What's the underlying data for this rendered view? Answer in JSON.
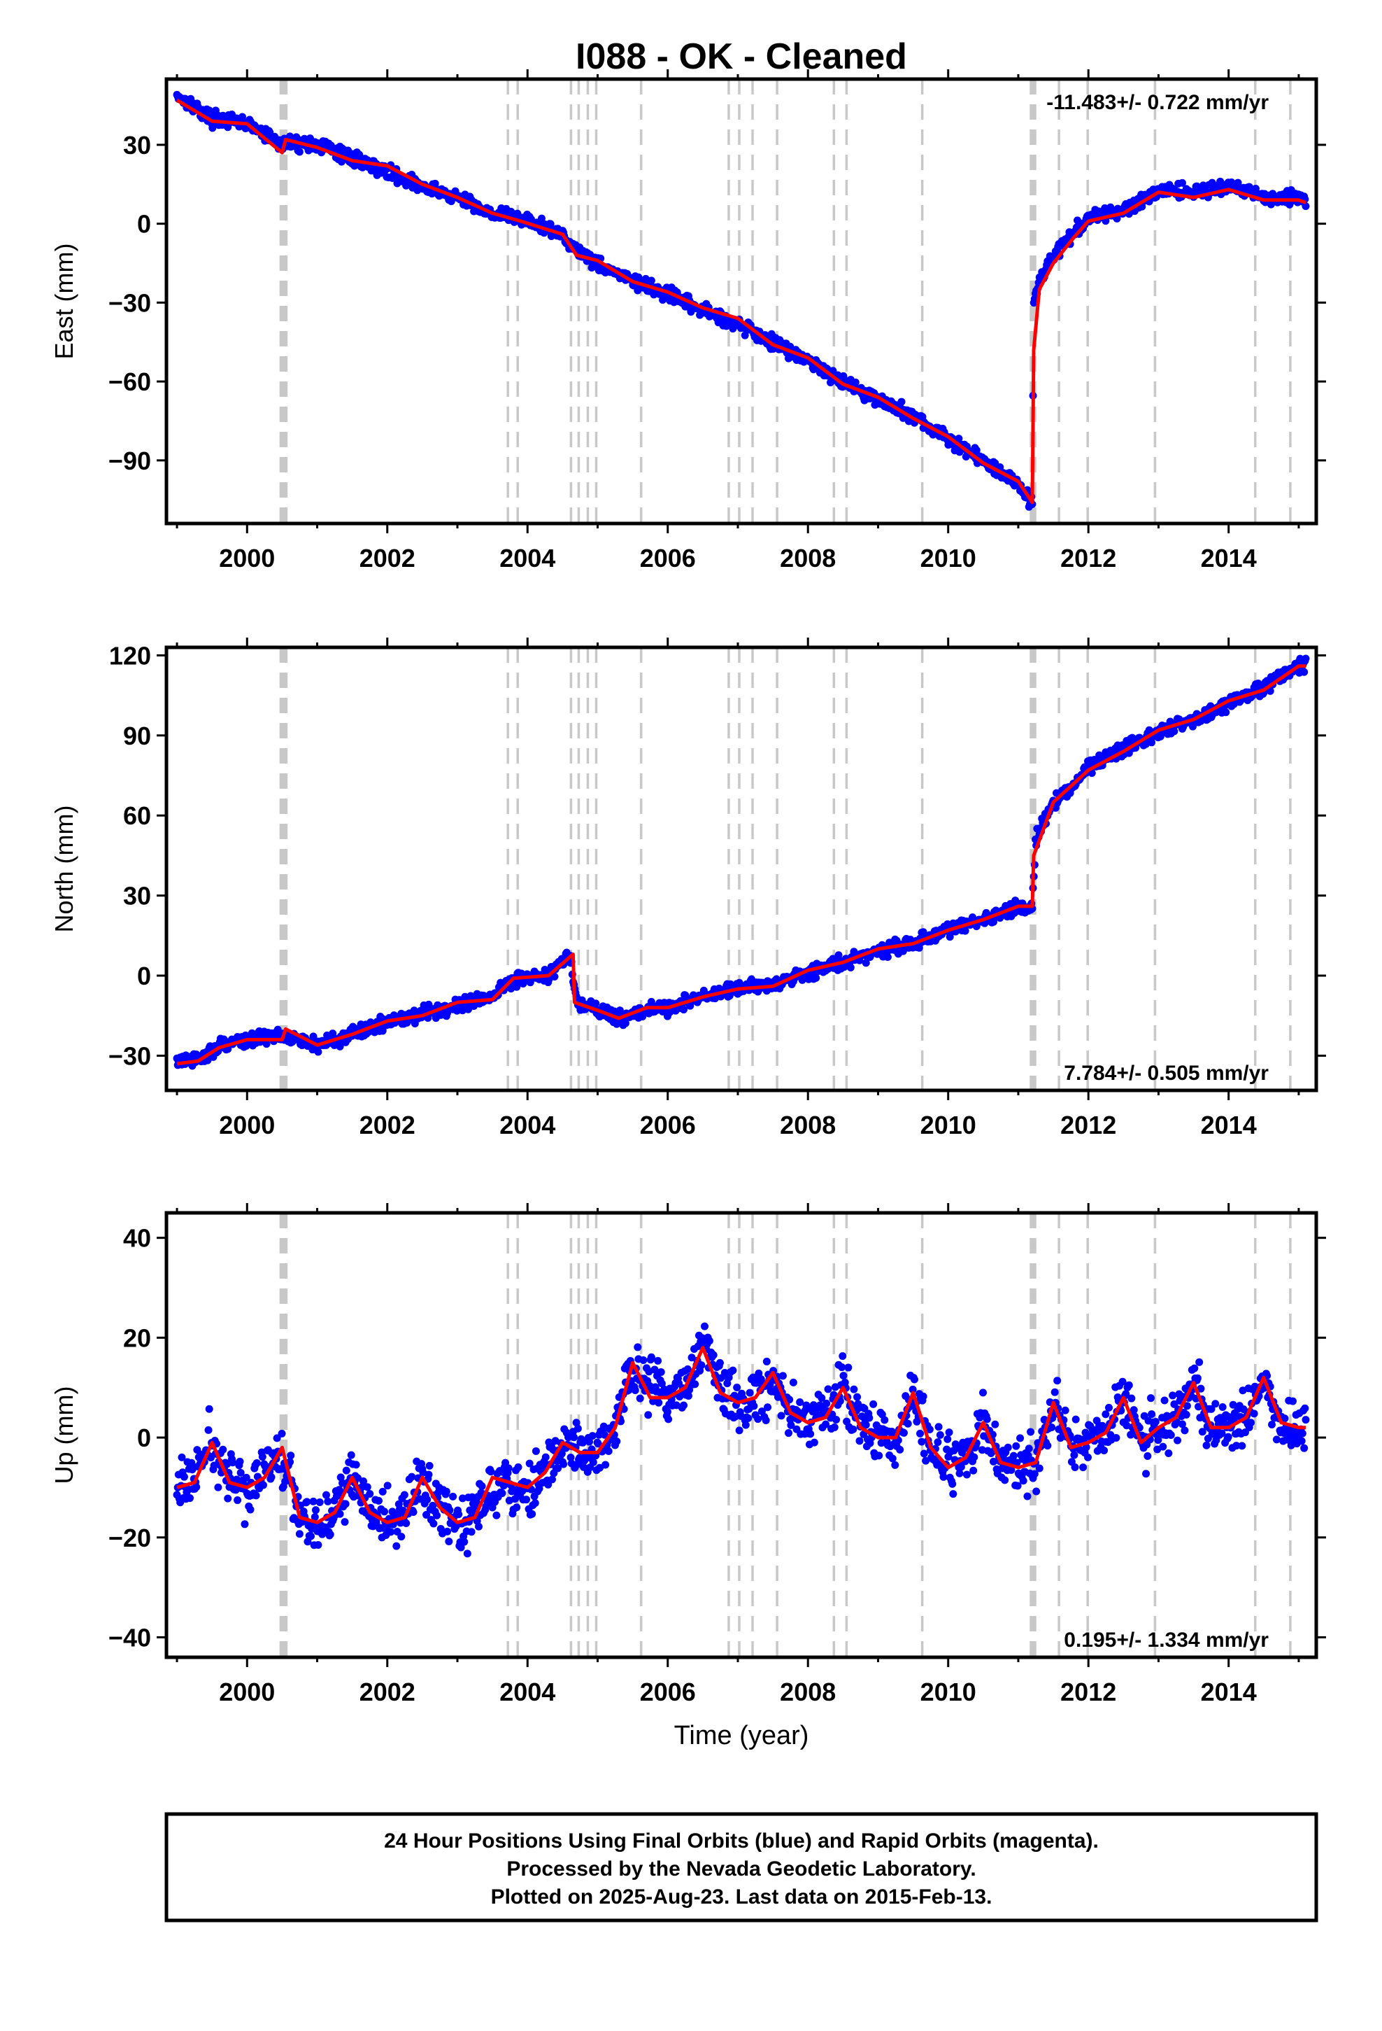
{
  "title": "I088  - OK - Cleaned",
  "xlabel": "Time (year)",
  "footer": {
    "line1": "24 Hour Positions Using Final Orbits (blue) and Rapid Orbits (magenta).",
    "line2": "Processed by the Nevada Geodetic Laboratory.",
    "line3": "Plotted on 2025-Aug-23. Last data on 2015-Feb-13."
  },
  "colors": {
    "data": "#0000ff",
    "model": "#ff0000",
    "event_lines": "#c8c8c8",
    "frame": "#000000"
  },
  "chart_data": [
    {
      "type": "scatter",
      "ylabel": "East (mm)",
      "rate_label": "-11.483+/- 0.722 mm/yr",
      "rate_position": "top-right",
      "xlim": [
        1998.85,
        2015.25
      ],
      "ylim": [
        -114,
        55
      ],
      "xticks": [
        2000,
        2002,
        2004,
        2006,
        2008,
        2010,
        2012,
        2014
      ],
      "yticks": [
        -90,
        -60,
        -30,
        0,
        30
      ],
      "series": [
        {
          "role": "data",
          "x": [
            1999.0,
            1999.5,
            2000.0,
            2000.5,
            2000.55,
            2001.0,
            2001.5,
            2002.0,
            2002.5,
            2003.0,
            2003.5,
            2003.9,
            2004.5,
            2004.7,
            2005.0,
            2005.5,
            2006.0,
            2006.5,
            2007.0,
            2007.5,
            2008.0,
            2008.5,
            2009.0,
            2009.5,
            2010.0,
            2010.5,
            2011.0,
            2011.2,
            2011.22,
            2011.3,
            2011.5,
            2011.8,
            2012.0,
            2012.5,
            2013.0,
            2013.5,
            2014.0,
            2014.5,
            2015.0,
            2015.1
          ],
          "y": [
            49,
            40,
            38,
            30,
            31,
            30,
            25,
            20,
            14,
            10,
            4,
            2,
            -4,
            -10,
            -15,
            -22,
            -27,
            -33,
            -38,
            -45,
            -52,
            -60,
            -67,
            -73,
            -82,
            -90,
            -99,
            -106,
            -30,
            -22,
            -12,
            -3,
            2,
            5,
            13,
            12,
            14,
            10,
            10,
            9
          ]
        }
      ],
      "model": {
        "x": [
          1999.0,
          1999.5,
          2000.0,
          2000.5,
          2000.55,
          2001.0,
          2001.5,
          2002.0,
          2002.5,
          2003.0,
          2003.5,
          2003.9,
          2004.5,
          2004.7,
          2005.0,
          2005.5,
          2006.0,
          2006.5,
          2007.0,
          2007.5,
          2008.0,
          2008.5,
          2009.0,
          2009.5,
          2010.0,
          2010.5,
          2011.0,
          2011.2,
          2011.22,
          2011.3,
          2011.5,
          2011.8,
          2012.0,
          2012.5,
          2013.0,
          2013.5,
          2014.0,
          2014.5,
          2015.0,
          2015.1
        ],
        "y": [
          47,
          39,
          38,
          27,
          32,
          29,
          24,
          22,
          15,
          10,
          4,
          1,
          -4,
          -12,
          -14,
          -22,
          -26,
          -32,
          -36,
          -46,
          -51,
          -61,
          -66,
          -74,
          -81,
          -91,
          -98,
          -106,
          -48,
          -25,
          -15,
          -5,
          1,
          4,
          12,
          10,
          13,
          9,
          9,
          8
        ]
      },
      "event_lines": [
        2000.48,
        2000.5,
        2000.52,
        2000.54,
        2000.56,
        2003.72,
        2003.86,
        2004.62,
        2004.73,
        2004.86,
        2004.98,
        2005.62,
        2006.87,
        2007.02,
        2007.21,
        2007.56,
        2008.37,
        2008.55,
        2009.63,
        2011.18,
        2011.21,
        2011.24,
        2011.58,
        2011.99,
        2012.95,
        2014.38,
        2014.88
      ]
    },
    {
      "type": "scatter",
      "ylabel": "North (mm)",
      "rate_label": "7.784+/- 0.505 mm/yr",
      "rate_position": "bottom-right",
      "xlim": [
        1998.85,
        2015.25
      ],
      "ylim": [
        -43,
        123
      ],
      "xticks": [
        2000,
        2002,
        2004,
        2006,
        2008,
        2010,
        2012,
        2014
      ],
      "yticks": [
        -30,
        0,
        30,
        60,
        90,
        120
      ],
      "series": [
        {
          "role": "data",
          "x": [
            1999.0,
            1999.3,
            1999.6,
            2000.0,
            2000.5,
            2001.0,
            2001.5,
            2002.0,
            2002.5,
            2003.0,
            2003.5,
            2003.8,
            2004.3,
            2004.6,
            2004.7,
            2005.0,
            2005.3,
            2005.7,
            2006.0,
            2006.5,
            2007.0,
            2007.5,
            2008.0,
            2008.5,
            2009.0,
            2009.5,
            2010.0,
            2010.5,
            2011.0,
            2011.2,
            2011.25,
            2011.5,
            2012.0,
            2012.5,
            2013.0,
            2013.5,
            2014.0,
            2014.5,
            2015.0,
            2015.1
          ],
          "y": [
            -32,
            -32,
            -26,
            -24,
            -22,
            -26,
            -22,
            -17,
            -14,
            -11,
            -8,
            -1,
            0,
            8,
            -10,
            -13,
            -16,
            -13,
            -12,
            -8,
            -5,
            -3,
            1,
            5,
            9,
            12,
            17,
            21,
            26,
            26,
            52,
            64,
            78,
            85,
            91,
            96,
            102,
            108,
            116,
            117
          ]
        }
      ],
      "model": {
        "x": [
          1999.0,
          1999.3,
          1999.6,
          2000.0,
          2000.5,
          2000.55,
          2001.0,
          2001.5,
          2002.0,
          2002.5,
          2003.0,
          2003.5,
          2003.8,
          2004.3,
          2004.65,
          2004.67,
          2005.0,
          2005.3,
          2005.7,
          2006.0,
          2006.5,
          2007.0,
          2007.5,
          2008.0,
          2008.5,
          2009.0,
          2009.5,
          2010.0,
          2010.5,
          2011.0,
          2011.2,
          2011.22,
          2011.5,
          2012.0,
          2012.5,
          2013.0,
          2013.5,
          2014.0,
          2014.5,
          2015.0,
          2015.1
        ],
        "y": [
          -33,
          -32,
          -27,
          -24,
          -24,
          -20,
          -26,
          -22,
          -17,
          -15,
          -10,
          -9,
          -1,
          0,
          8,
          -10,
          -13,
          -16,
          -12,
          -12,
          -8,
          -5,
          -4,
          2,
          5,
          10,
          12,
          17,
          21,
          26,
          26,
          45,
          65,
          77,
          84,
          92,
          96,
          103,
          107,
          116,
          116
        ]
      },
      "event_lines": [
        2000.48,
        2000.5,
        2000.52,
        2000.54,
        2000.56,
        2003.72,
        2003.86,
        2004.62,
        2004.73,
        2004.86,
        2004.98,
        2005.62,
        2006.87,
        2007.02,
        2007.21,
        2007.56,
        2008.37,
        2008.55,
        2009.63,
        2011.18,
        2011.21,
        2011.24,
        2011.58,
        2011.99,
        2012.95,
        2014.38,
        2014.88
      ]
    },
    {
      "type": "scatter",
      "ylabel": "Up (mm)",
      "rate_label": "0.195+/- 1.334 mm/yr",
      "rate_position": "bottom-right",
      "xlim": [
        1998.85,
        2015.25
      ],
      "ylim": [
        -44,
        45
      ],
      "xticks": [
        2000,
        2002,
        2004,
        2006,
        2008,
        2010,
        2012,
        2014
      ],
      "yticks": [
        -40,
        -20,
        0,
        20,
        40
      ],
      "series": [
        {
          "role": "data",
          "x": [
            1999.0,
            1999.25,
            1999.5,
            1999.75,
            2000.0,
            2000.25,
            2000.5,
            2000.75,
            2001.0,
            2001.25,
            2001.5,
            2001.75,
            2002.0,
            2002.25,
            2002.5,
            2002.75,
            2003.0,
            2003.25,
            2003.5,
            2003.75,
            2004.0,
            2004.25,
            2004.5,
            2004.75,
            2005.0,
            2005.25,
            2005.5,
            2005.75,
            2006.0,
            2006.25,
            2006.5,
            2006.75,
            2007.0,
            2007.25,
            2007.5,
            2007.75,
            2008.0,
            2008.25,
            2008.5,
            2008.75,
            2009.0,
            2009.25,
            2009.5,
            2009.75,
            2010.0,
            2010.25,
            2010.5,
            2010.75,
            2011.0,
            2011.25,
            2011.5,
            2011.75,
            2012.0,
            2012.25,
            2012.5,
            2012.75,
            2013.0,
            2013.25,
            2013.5,
            2013.75,
            2014.0,
            2014.25,
            2014.5,
            2014.75,
            2015.0,
            2015.1
          ],
          "y": [
            -10,
            -8,
            -1,
            -9,
            -10,
            -7,
            -3,
            -15,
            -17,
            -15,
            -8,
            -15,
            -17,
            -16,
            -8,
            -14,
            -17,
            -16,
            -8,
            -9,
            -10,
            -7,
            -2,
            -3,
            -3,
            2,
            14,
            10,
            8,
            11,
            18,
            11,
            7,
            7,
            12,
            5,
            3,
            4,
            10,
            3,
            0,
            0,
            9,
            -2,
            -6,
            -4,
            3,
            -5,
            -6,
            -5,
            7,
            -2,
            -1,
            1,
            8,
            -1,
            2,
            4,
            11,
            2,
            2,
            4,
            12,
            3,
            2,
            2
          ]
        }
      ],
      "model": {
        "x": [
          1999.0,
          1999.25,
          1999.5,
          1999.75,
          2000.0,
          2000.25,
          2000.5,
          2000.75,
          2001.0,
          2001.25,
          2001.5,
          2001.75,
          2002.0,
          2002.25,
          2002.5,
          2002.75,
          2003.0,
          2003.25,
          2003.5,
          2003.75,
          2004.0,
          2004.25,
          2004.5,
          2004.75,
          2005.0,
          2005.25,
          2005.5,
          2005.75,
          2006.0,
          2006.25,
          2006.5,
          2006.75,
          2007.0,
          2007.25,
          2007.5,
          2007.75,
          2008.0,
          2008.25,
          2008.5,
          2008.75,
          2009.0,
          2009.25,
          2009.5,
          2009.75,
          2010.0,
          2010.25,
          2010.5,
          2010.75,
          2011.0,
          2011.25,
          2011.5,
          2011.75,
          2012.0,
          2012.25,
          2012.5,
          2012.75,
          2013.0,
          2013.25,
          2013.5,
          2013.75,
          2014.0,
          2014.25,
          2014.5,
          2014.75,
          2015.0,
          2015.1
        ],
        "y": [
          -10,
          -9,
          -1,
          -9,
          -10,
          -8,
          -2,
          -16,
          -17,
          -15,
          -8,
          -15,
          -17,
          -16,
          -8,
          -14,
          -17,
          -16,
          -8,
          -9,
          -10,
          -7,
          -1,
          -3,
          -3,
          2,
          15,
          8,
          8,
          10,
          18,
          9,
          7,
          8,
          13,
          5,
          3,
          4,
          10,
          2,
          0,
          0,
          9,
          -2,
          -6,
          -4,
          3,
          -5,
          -6,
          -5,
          7,
          -2,
          -1,
          1,
          8,
          -1,
          2,
          4,
          11,
          2,
          2,
          4,
          12,
          3,
          2,
          2
        ]
      },
      "event_lines": [
        2000.48,
        2000.5,
        2000.52,
        2000.54,
        2000.56,
        2003.72,
        2003.86,
        2004.62,
        2004.73,
        2004.86,
        2004.98,
        2005.62,
        2006.87,
        2007.02,
        2007.21,
        2007.56,
        2008.37,
        2008.55,
        2009.63,
        2011.18,
        2011.21,
        2011.24,
        2011.58,
        2011.99,
        2012.95,
        2014.38,
        2014.88
      ]
    }
  ]
}
